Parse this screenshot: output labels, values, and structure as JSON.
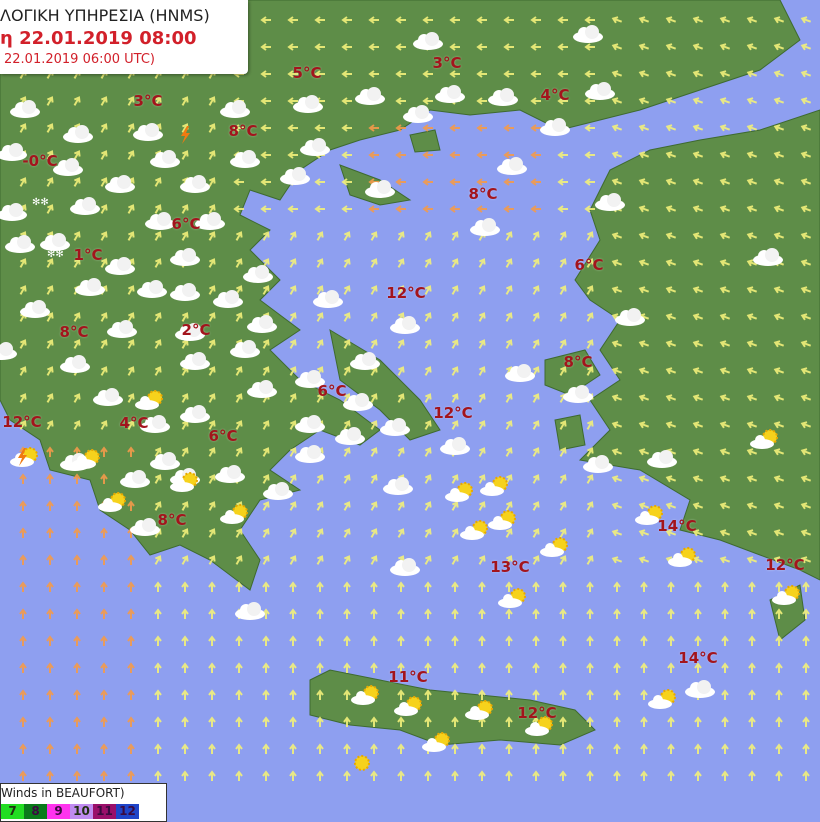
{
  "header": {
    "agency": "ΛΟΓΙΚΗ ΥΠΗΡΕΣΙΑ (HNMS)",
    "forecast_time": "η 22.01.2019 08:00",
    "run_time": "22.01.2019 06:00 UTC)"
  },
  "temperatures": [
    "5°C",
    "3°C",
    "3°C",
    "4°C",
    "8°C",
    "-0°C",
    "8°C",
    "6°C",
    "1°C",
    "6°C",
    "12°C",
    "8°C",
    "2°C",
    "8°C",
    "6°C",
    "12°C",
    "12°C",
    "4°C",
    "6°C",
    "14°C",
    "8°C",
    "13°C",
    "12°C",
    "14°C",
    "11°C",
    "12°C"
  ],
  "legend": {
    "title": "Winds in BEAUFORT)",
    "scale": [
      {
        "label": "7",
        "color": "#22dd22"
      },
      {
        "label": "8",
        "color": "#0a7a1a"
      },
      {
        "label": "9",
        "color": "#ff33ee"
      },
      {
        "label": "10",
        "color": "#c08cf0"
      },
      {
        "label": "11",
        "color": "#9a0f6a"
      },
      {
        "label": "12",
        "color": "#1f44c8"
      }
    ]
  },
  "colors": {
    "sea": "#8e9ff0",
    "land": "#5e8d48",
    "temperature": "#a3141c",
    "wind_arrow": "#f2f07a",
    "strong_wind_arrow": "#f39a4a"
  },
  "icons": [
    "cloud-icon",
    "rain-cloud-icon",
    "snow-cloud-icon",
    "sun-cloud-icon",
    "sun-icon",
    "lightning-icon",
    "wind-arrow-icon"
  ]
}
